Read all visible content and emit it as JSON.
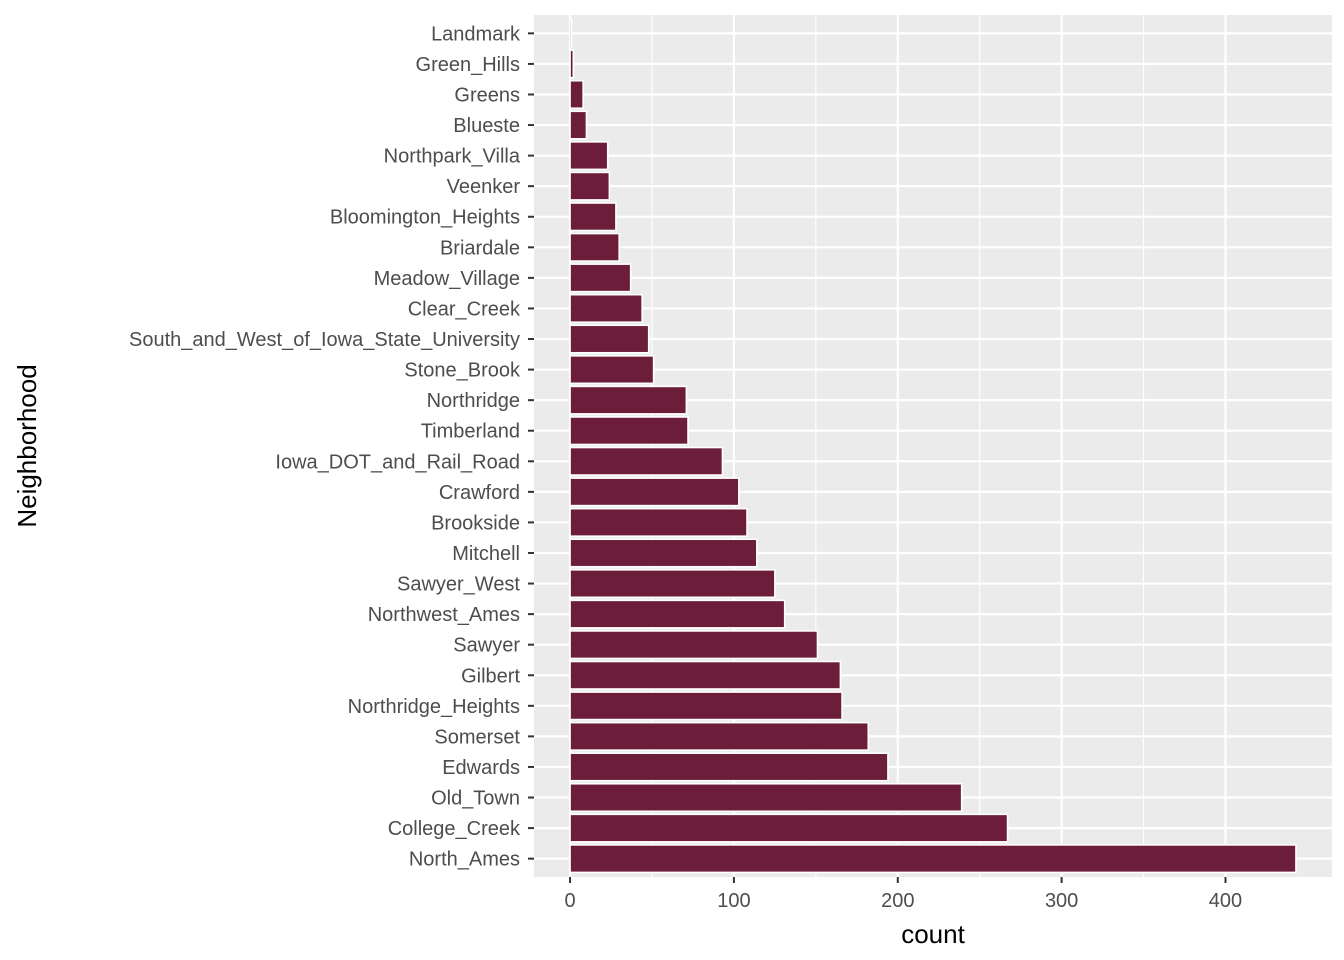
{
  "chart_data": {
    "type": "bar",
    "orientation": "horizontal",
    "title": "",
    "xlabel": "count",
    "ylabel": "Neighborhood",
    "categories": [
      "North_Ames",
      "College_Creek",
      "Old_Town",
      "Edwards",
      "Somerset",
      "Northridge_Heights",
      "Gilbert",
      "Sawyer",
      "Northwest_Ames",
      "Sawyer_West",
      "Mitchell",
      "Brookside",
      "Crawford",
      "Iowa_DOT_and_Rail_Road",
      "Timberland",
      "Northridge",
      "Stone_Brook",
      "South_and_West_of_Iowa_State_University",
      "Clear_Creek",
      "Meadow_Village",
      "Briardale",
      "Bloomington_Heights",
      "Veenker",
      "Northpark_Villa",
      "Blueste",
      "Greens",
      "Green_Hills",
      "Landmark"
    ],
    "values": [
      443,
      267,
      239,
      194,
      182,
      166,
      165,
      151,
      131,
      125,
      114,
      108,
      103,
      93,
      72,
      71,
      51,
      48,
      44,
      37,
      30,
      28,
      24,
      23,
      10,
      8,
      2,
      1
    ],
    "xlim": [
      -22,
      465
    ],
    "xticks": [
      0,
      100,
      200,
      300,
      400
    ],
    "grid": true,
    "colors": {
      "bar_fill": "#6b1d3a",
      "bar_outline": "#ffffff",
      "panel_background": "#ebebeb",
      "grid_line": "#ffffff",
      "tick_text": "#4d4d4d",
      "title_text": "#000000"
    }
  }
}
